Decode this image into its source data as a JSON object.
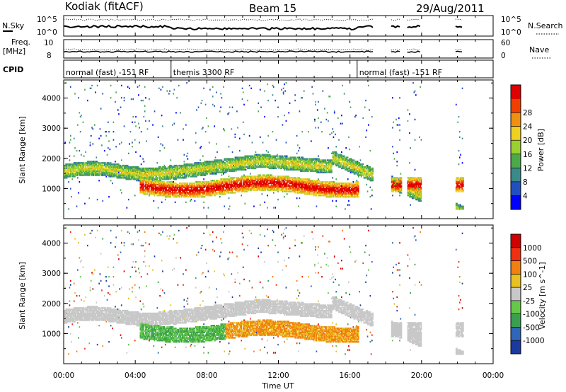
{
  "header": {
    "station": "Kodiak (fitACF)",
    "beam": "Beam 15",
    "date": "29/Aug/2011"
  },
  "panels": {
    "nsky_label": "N.Sky",
    "nsky_ticks": [
      "10^5",
      "10^0"
    ],
    "nsearch_label": "N.Search",
    "nsearch_ticks": [
      "10^5",
      "10^0"
    ],
    "freq_label": "Freq.",
    "freq_unit": "[MHz]",
    "freq_ticks": [
      "10",
      "8"
    ],
    "nave_label": "Nave",
    "nave_ticks": [
      "60",
      "0"
    ],
    "cpid_label": "CPID"
  },
  "cpid_segments": [
    {
      "label": "normal (fast) -151 RF",
      "start": 0.0,
      "end": 6.0
    },
    {
      "label": "themis 3300 RF",
      "start": 6.0,
      "end": 16.4
    },
    {
      "label": "normal (fast) -151 RF",
      "start": 16.4,
      "end": 24.0
    }
  ],
  "chart_data": [
    {
      "type": "heatmap",
      "name": "power",
      "ylabel": "Slant Range [km]",
      "yticks": [
        "1000",
        "2000",
        "3000",
        "4000"
      ],
      "ylim": [
        0,
        4600
      ],
      "xlim": [
        0,
        24
      ],
      "colorbar_label": "Power [dB]",
      "colorbar_ticks": [
        "4",
        "8",
        "12",
        "16",
        "20",
        "24",
        "28"
      ],
      "colorscale": [
        "#0000ff",
        "#2050c0",
        "#3a8a8a",
        "#4aaa4a",
        "#9ad030",
        "#f0d020",
        "#f09010",
        "#f04000",
        "#e00000"
      ]
    },
    {
      "type": "heatmap",
      "name": "velocity",
      "ylabel": "Slant Range [km]",
      "yticks": [
        "1000",
        "2000",
        "3000",
        "4000"
      ],
      "ylim": [
        0,
        4600
      ],
      "xlim": [
        0,
        24
      ],
      "xlabel": "Time UT",
      "xticks": [
        "00:00",
        "04:00",
        "08:00",
        "12:00",
        "16:00",
        "20:00",
        "00:00"
      ],
      "colorbar_label": "Velocity [m s^-1]",
      "colorbar_ticks": [
        "1000",
        "500",
        "100",
        "25",
        "-25",
        "-100",
        "-500",
        "-1000"
      ],
      "colorscale": [
        "#1a3aa0",
        "#2f66b8",
        "#3aa050",
        "#66c848",
        "#c8c8c8",
        "#e8c020",
        "#f08010",
        "#f03010",
        "#d00000"
      ]
    }
  ]
}
